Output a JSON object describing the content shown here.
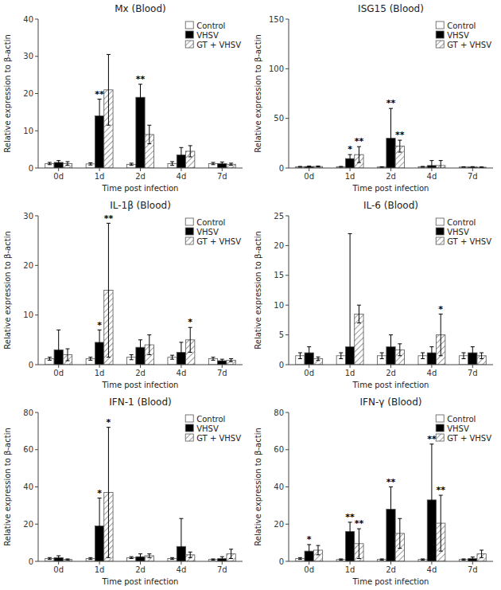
{
  "chart_data": [
    {
      "type": "bar",
      "title": "Mx (Blood)",
      "xlabel": "Time post infection",
      "ylabel": "Relative expression to β-actin",
      "categories": [
        "0d",
        "1d",
        "2d",
        "4d",
        "7d"
      ],
      "series": [
        {
          "name": "Control",
          "color": "white",
          "values": [
            1.2,
            1.1,
            1.0,
            1.2,
            1.2
          ],
          "errors": [
            0.3,
            0.3,
            0.3,
            0.5,
            0.3
          ]
        },
        {
          "name": "VHSV",
          "color": "black",
          "values": [
            1.5,
            14.0,
            19.0,
            3.5,
            1.2
          ],
          "errors": [
            0.5,
            4.5,
            3.5,
            2.0,
            0.4
          ]
        },
        {
          "name": "GT + VHSV",
          "color": "white",
          "values": [
            1.2,
            21.0,
            9.0,
            4.5,
            1.0
          ],
          "errors": [
            0.5,
            9.5,
            2.5,
            1.5,
            0.3
          ]
        }
      ],
      "ylim": [
        0,
        40
      ],
      "yticks": [
        0,
        10,
        20,
        30,
        40
      ],
      "grid": false,
      "legend": "upper right",
      "annotations": [
        {
          "text": "**",
          "x": "1d",
          "series": "VHSV"
        },
        {
          "text": "**",
          "x": "2d",
          "series": "VHSV"
        }
      ]
    },
    {
      "type": "bar",
      "title": "ISG15 (Blood)",
      "xlabel": "Time post infection",
      "ylabel": "Relative expression to β-actin",
      "categories": [
        "0d",
        "1d",
        "2d",
        "4d",
        "7d"
      ],
      "series": [
        {
          "name": "Control",
          "color": "white",
          "values": [
            1.2,
            1.2,
            1.0,
            1.2,
            1.0
          ],
          "errors": [
            0.4,
            0.4,
            0.3,
            0.4,
            0.3
          ]
        },
        {
          "name": "VHSV",
          "color": "black",
          "values": [
            1.5,
            9.5,
            30.0,
            2.5,
            1.0
          ],
          "errors": [
            0.5,
            4.0,
            30.0,
            5.0,
            0.4
          ]
        },
        {
          "name": "GT + VHSV",
          "color": "white",
          "values": [
            1.5,
            13.5,
            22.0,
            2.5,
            0.8
          ],
          "errors": [
            0.5,
            8.0,
            6.0,
            5.0,
            0.3
          ]
        }
      ],
      "ylim": [
        0,
        150
      ],
      "yticks": [
        0,
        50,
        100,
        150
      ],
      "grid": false,
      "legend": "upper right",
      "annotations": [
        {
          "text": "*",
          "x": "1d",
          "series": "VHSV"
        },
        {
          "text": "**",
          "x": "1d",
          "series": "GT + VHSV"
        },
        {
          "text": "**",
          "x": "2d",
          "series": "VHSV"
        },
        {
          "text": "**",
          "x": "2d",
          "series": "GT + VHSV"
        }
      ]
    },
    {
      "type": "bar",
      "title": "IL-1β (Blood)",
      "xlabel": "Time post infection",
      "ylabel": "Relative expression to β-actin",
      "categories": [
        "0d",
        "1d",
        "2d",
        "4d",
        "7d"
      ],
      "series": [
        {
          "name": "Control",
          "color": "white",
          "values": [
            1.2,
            1.2,
            1.5,
            1.5,
            1.2
          ],
          "errors": [
            0.3,
            0.3,
            0.5,
            0.4,
            0.3
          ]
        },
        {
          "name": "VHSV",
          "color": "black",
          "values": [
            3.0,
            4.5,
            3.5,
            2.5,
            0.8
          ],
          "errors": [
            4.0,
            2.5,
            1.5,
            2.0,
            0.3
          ]
        },
        {
          "name": "GT + VHSV",
          "color": "white",
          "values": [
            2.0,
            15.0,
            4.0,
            5.0,
            0.9
          ],
          "errors": [
            1.2,
            13.5,
            2.0,
            2.5,
            0.3
          ]
        }
      ],
      "ylim": [
        0,
        30
      ],
      "yticks": [
        0,
        10,
        20,
        30
      ],
      "grid": false,
      "legend": "upper right",
      "annotations": [
        {
          "text": "*",
          "x": "1d",
          "series": "VHSV"
        },
        {
          "text": "**",
          "x": "1d",
          "series": "GT + VHSV"
        },
        {
          "text": "*",
          "x": "4d",
          "series": "GT + VHSV"
        }
      ]
    },
    {
      "type": "bar",
      "title": "IL-6 (Blood)",
      "xlabel": "Time post infection",
      "ylabel": "Relative expression to β-actin",
      "categories": [
        "0d",
        "1d",
        "2d",
        "4d",
        "7d"
      ],
      "series": [
        {
          "name": "Control",
          "color": "white",
          "values": [
            1.5,
            1.5,
            1.5,
            1.5,
            1.5
          ],
          "errors": [
            0.5,
            0.5,
            0.5,
            0.5,
            0.5
          ]
        },
        {
          "name": "VHSV",
          "color": "black",
          "values": [
            2.0,
            3.0,
            3.0,
            2.0,
            2.0
          ],
          "errors": [
            1.0,
            19.0,
            2.0,
            1.0,
            1.0
          ]
        },
        {
          "name": "GT + VHSV",
          "color": "white",
          "values": [
            1.0,
            8.5,
            2.5,
            5.0,
            1.5
          ],
          "errors": [
            0.3,
            1.5,
            1.0,
            3.5,
            0.5
          ]
        }
      ],
      "ylim": [
        0,
        25
      ],
      "yticks": [
        0,
        5,
        10,
        15,
        20,
        25
      ],
      "grid": false,
      "legend": "upper right",
      "annotations": [
        {
          "text": "*",
          "x": "4d",
          "series": "GT + VHSV"
        }
      ]
    },
    {
      "type": "bar",
      "title": "IFN-1 (Blood)",
      "xlabel": "Time post infection",
      "ylabel": "Relative expression to β-actin",
      "categories": [
        "0d",
        "1d",
        "2d",
        "4d",
        "7d"
      ],
      "series": [
        {
          "name": "Control",
          "color": "white",
          "values": [
            1.5,
            1.5,
            2.0,
            1.5,
            1.0
          ],
          "errors": [
            0.5,
            0.5,
            0.5,
            0.5,
            0.3
          ]
        },
        {
          "name": "VHSV",
          "color": "black",
          "values": [
            2.0,
            19.0,
            2.5,
            8.0,
            1.5
          ],
          "errors": [
            1.0,
            15.0,
            1.5,
            15.0,
            1.0
          ]
        },
        {
          "name": "GT + VHSV",
          "color": "white",
          "values": [
            1.0,
            37.0,
            3.0,
            3.5,
            4.0
          ],
          "errors": [
            0.3,
            35.0,
            1.0,
            1.5,
            2.5
          ]
        }
      ],
      "ylim": [
        0,
        80
      ],
      "yticks": [
        0,
        20,
        40,
        60,
        80
      ],
      "grid": false,
      "legend": "upper right",
      "annotations": [
        {
          "text": "*",
          "x": "1d",
          "series": "VHSV"
        },
        {
          "text": "*",
          "x": "1d",
          "series": "GT + VHSV"
        }
      ]
    },
    {
      "type": "bar",
      "title": "IFN-γ (Blood)",
      "xlabel": "Time post infection",
      "ylabel": "Relative expression to β-actin",
      "categories": [
        "0d",
        "1d",
        "2d",
        "4d",
        "7d"
      ],
      "series": [
        {
          "name": "Control",
          "color": "white",
          "values": [
            1.5,
            1.0,
            1.0,
            1.0,
            1.0
          ],
          "errors": [
            0.5,
            0.3,
            0.3,
            0.3,
            0.3
          ]
        },
        {
          "name": "VHSV",
          "color": "black",
          "values": [
            5.5,
            16.0,
            28.0,
            33.0,
            1.5
          ],
          "errors": [
            3.5,
            5.0,
            12.0,
            30.0,
            0.8
          ]
        },
        {
          "name": "GT + VHSV",
          "color": "white",
          "values": [
            6.0,
            9.5,
            15.0,
            20.5,
            4.0
          ],
          "errors": [
            2.5,
            8.0,
            8.0,
            15.0,
            2.0
          ]
        }
      ],
      "ylim": [
        0,
        80
      ],
      "yticks": [
        0,
        20,
        40,
        60,
        80
      ],
      "grid": false,
      "legend": "upper right",
      "annotations": [
        {
          "text": "*",
          "x": "0d",
          "series": "VHSV"
        },
        {
          "text": "**",
          "x": "1d",
          "series": "VHSV"
        },
        {
          "text": "**",
          "x": "1d",
          "series": "GT + VHSV"
        },
        {
          "text": "**",
          "x": "2d",
          "series": "VHSV"
        },
        {
          "text": "**",
          "x": "4d",
          "series": "VHSV"
        },
        {
          "text": "**",
          "x": "4d",
          "series": "GT + VHSV"
        }
      ]
    }
  ]
}
